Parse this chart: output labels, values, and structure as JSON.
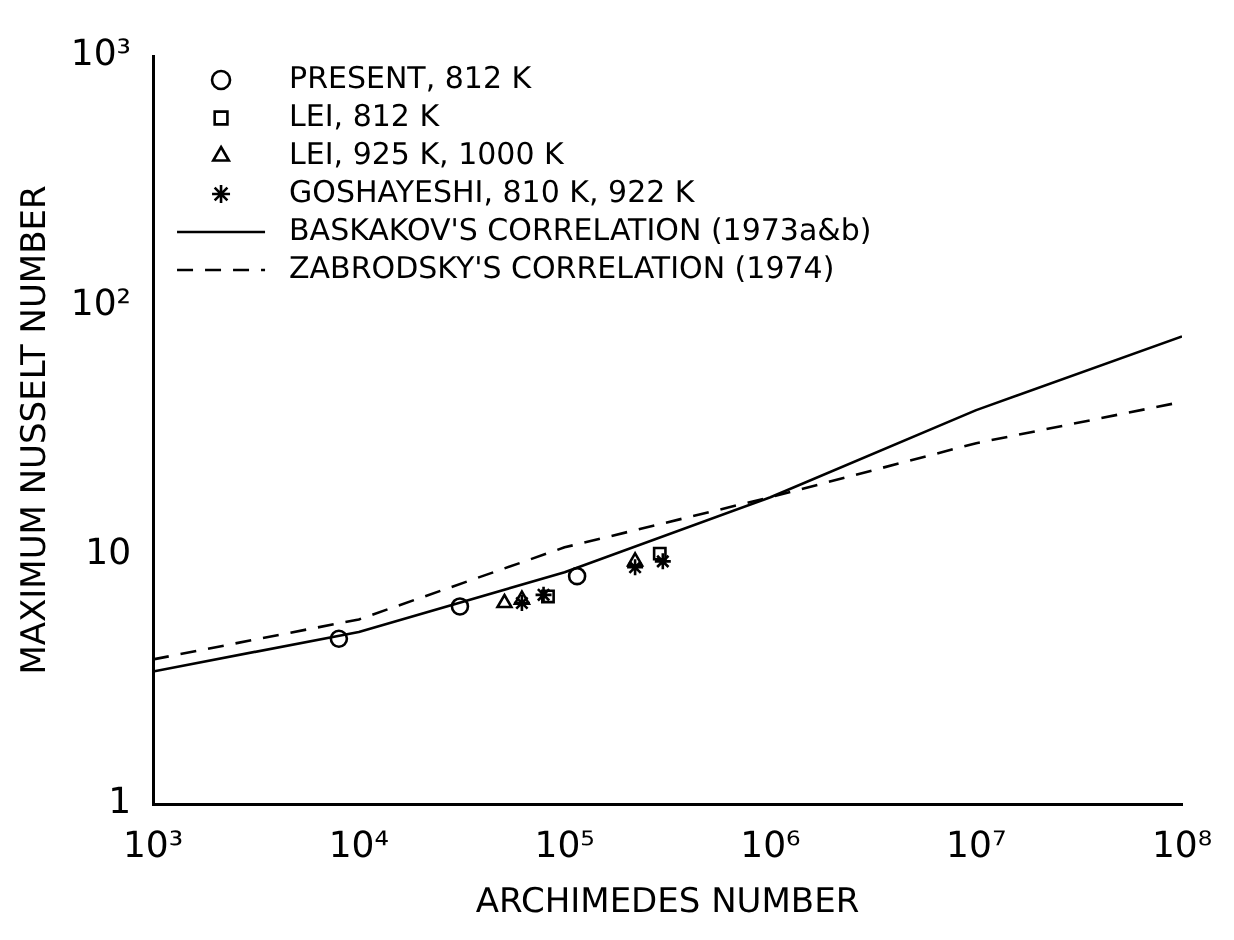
{
  "chart_data": {
    "type": "scatter",
    "xlabel": "ARCHIMEDES NUMBER",
    "ylabel": "MAXIMUM NUSSELT NUMBER",
    "log": "xy",
    "xlim": [
      1000,
      100000000
    ],
    "ylim": [
      1,
      1000
    ],
    "xticks": [
      {
        "value": 1000,
        "label": "10³"
      },
      {
        "value": 10000,
        "label": "10⁴"
      },
      {
        "value": 100000,
        "label": "10⁵"
      },
      {
        "value": 1000000,
        "label": "10⁶"
      },
      {
        "value": 10000000,
        "label": "10⁷"
      },
      {
        "value": 100000000,
        "label": "10⁸"
      }
    ],
    "yticks": [
      1,
      10,
      {
        "value": 100,
        "label": "10²"
      },
      {
        "value": 1000,
        "label": "10³"
      }
    ],
    "grid": false,
    "legend": "top left",
    "series": [
      {
        "name": "PRESENT, 812 K",
        "color": "#000000",
        "marker": "circle",
        "x": [
          8000,
          31000,
          115000
        ],
        "values": [
          4.6,
          6.2,
          8.2
        ]
      },
      {
        "name": "LEI, 812 K",
        "color": "#000000",
        "marker": "square",
        "x": [
          83000,
          290000
        ],
        "values": [
          6.8,
          10.1
        ]
      },
      {
        "name": "LEI, 925 K, 1000 K",
        "color": "#000000",
        "marker": "triangle",
        "x": [
          51000,
          62000,
          220000
        ],
        "values": [
          6.4,
          6.6,
          9.4
        ]
      },
      {
        "name": "GOSHAYESHI, 810 K, 922 K",
        "color": "#000000",
        "marker": "cross",
        "x": [
          62000,
          79000,
          220000,
          300000
        ],
        "values": [
          6.4,
          6.9,
          8.9,
          9.4
        ]
      },
      {
        "name": "BASKAKOV'S CORRELATION (1973a&b)",
        "color": "#000000",
        "type": "line",
        "line_style": "solid",
        "marker": "none",
        "x": [
          1000,
          10000,
          100000,
          1000000,
          10000000,
          100000000
        ],
        "values": [
          3.4,
          4.9,
          8.5,
          17,
          38,
          75
        ]
      },
      {
        "name": "ZABRODSKY'S CORRELATION (1974)",
        "color": "#000000",
        "type": "line",
        "line_style": "dashed",
        "marker": "none",
        "x": [
          1000,
          10000,
          100000,
          1000000,
          10000000,
          100000000
        ],
        "values": [
          3.8,
          5.5,
          10.7,
          17,
          28,
          41
        ]
      }
    ]
  }
}
